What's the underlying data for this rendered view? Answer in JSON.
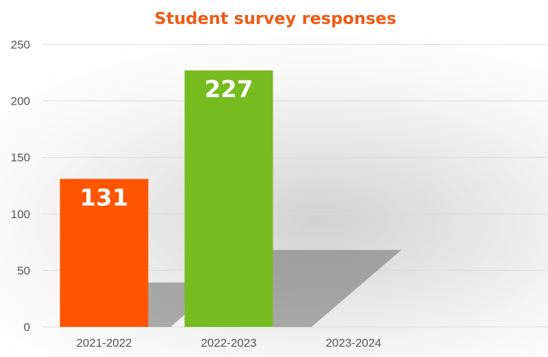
{
  "chart_data": {
    "type": "bar",
    "title": "Student survey responses",
    "categories": [
      "2021-2022",
      "2022-2023",
      "2023-2024"
    ],
    "values": [
      131,
      227,
      null
    ],
    "data_labels": [
      "131",
      "227",
      ""
    ],
    "ylim": [
      0,
      250
    ],
    "yticks": [
      0,
      50,
      100,
      150,
      200,
      250
    ],
    "grid": true,
    "xlabel": "",
    "ylabel": "",
    "colors": {
      "title": "#F05A14",
      "bars": [
        "#FF5500",
        "#76BC21",
        "#999999"
      ],
      "data_label": "#FFFFFF",
      "grid": "#DADADA",
      "tick_label": "#555555"
    }
  }
}
